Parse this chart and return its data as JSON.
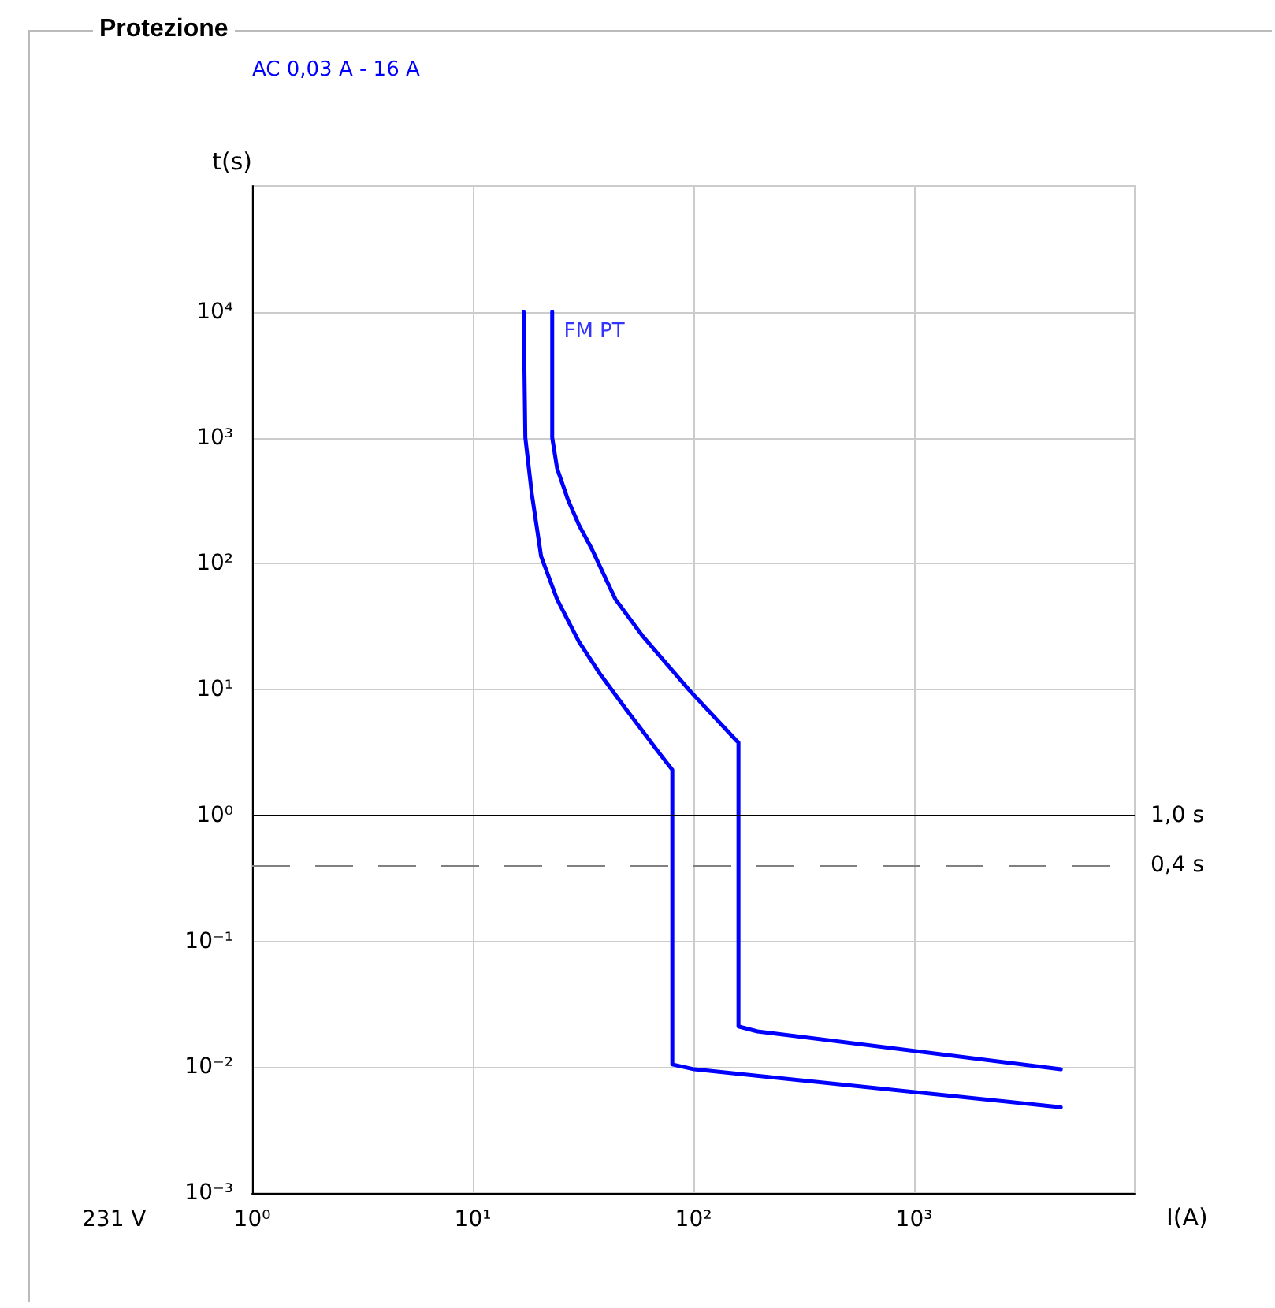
{
  "chart_data": {
    "type": "line",
    "title": "Protezione",
    "subtitle": "AC 0,03 A - 16 A",
    "xlabel": "I(A)",
    "ylabel": "t(s)",
    "annotations": [
      {
        "text": "FM PT",
        "x": 25,
        "y": 10000
      },
      "231 V"
    ],
    "log": "xy",
    "grid": true,
    "marker": "none",
    "line_style": "solid",
    "xlim": [
      1,
      10000
    ],
    "ylim": [
      0.001,
      100000
    ],
    "xticks": [
      {
        "value": 1,
        "label": "10⁰"
      },
      {
        "value": 10,
        "label": "10¹"
      },
      {
        "value": 100,
        "label": "10²"
      },
      {
        "value": 1000,
        "label": "10³"
      }
    ],
    "yticks": [
      {
        "value": 0.001,
        "label": "10⁻³"
      },
      {
        "value": 0.01,
        "label": "10⁻²"
      },
      {
        "value": 0.1,
        "label": "10⁻¹"
      },
      {
        "value": 1,
        "label": "10⁰"
      },
      {
        "value": 10,
        "label": "10¹"
      },
      {
        "value": 100,
        "label": "10²"
      },
      {
        "value": 1000,
        "label": "10³"
      },
      {
        "value": 10000,
        "label": "10⁴"
      }
    ],
    "series": [
      {
        "color": "#0000ff",
        "x": [
          17.0,
          17.3,
          18.5,
          20.4,
          24.1,
          30.3,
          37.6,
          49.7,
          69.2,
          80.2,
          80.2,
          101,
          4624
        ],
        "values": [
          10000,
          1000,
          360,
          114,
          52,
          23.9,
          13.4,
          6.9,
          3.2,
          2.3,
          0.0105,
          0.0096,
          0.0048
        ]
      },
      {
        "color": "#0000ff",
        "x": [
          22.9,
          22.9,
          24.1,
          27.0,
          30.3,
          34.6,
          44.3,
          58.6,
          96.1,
          157,
          160,
          160,
          195,
          4624
        ],
        "values": [
          10000,
          1000,
          571,
          321,
          202,
          131,
          52,
          26.8,
          9.8,
          3.9,
          3.8,
          0.021,
          0.0192,
          0.0096
        ]
      }
    ],
    "ref_lines": [
      {
        "axis": "y",
        "value": 1,
        "label": "1,0 s",
        "color": "#000000",
        "line_style": "solid"
      },
      {
        "axis": "y",
        "value": 0.4,
        "label": "0,4 s",
        "color": "#808080",
        "line_style": "dashed"
      }
    ]
  }
}
